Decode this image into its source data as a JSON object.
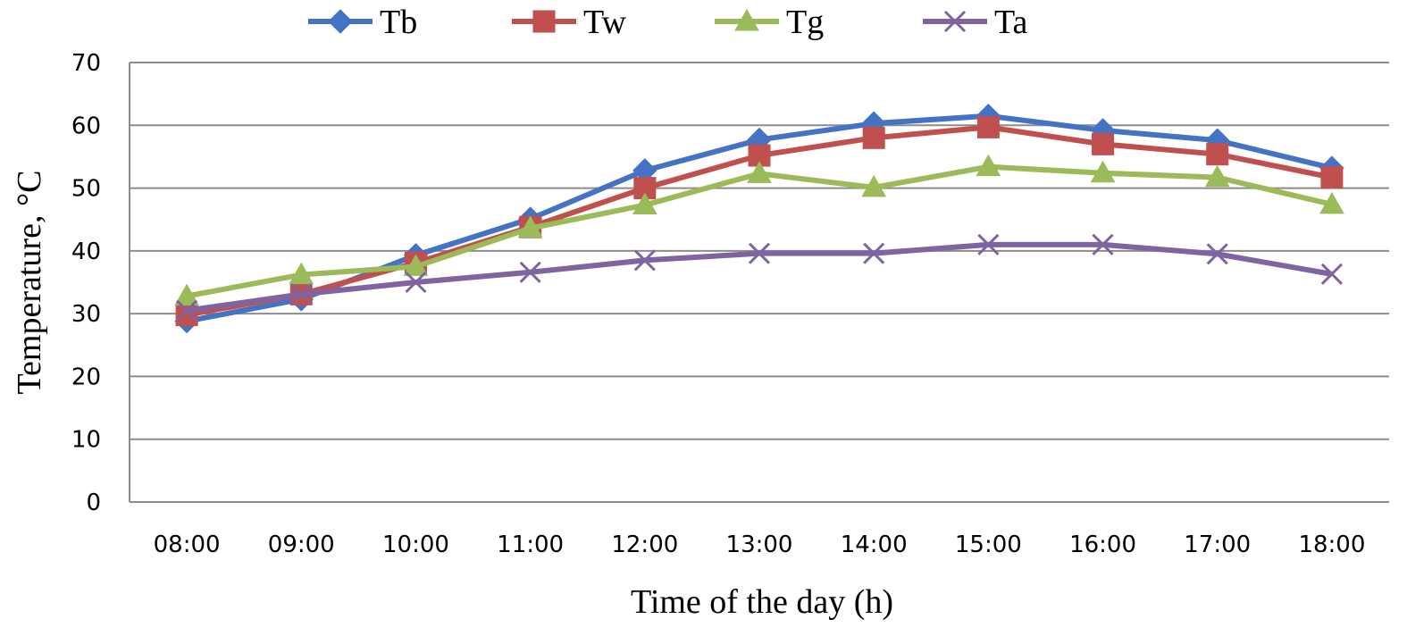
{
  "chart_data": {
    "type": "line",
    "title": "",
    "xlabel": "Time of the day (h)",
    "ylabel": "Temperature, °C",
    "ylim": [
      0,
      70
    ],
    "yticks": [
      "0",
      "10",
      "20",
      "30",
      "40",
      "50",
      "60",
      "70"
    ],
    "grid": "horizontal",
    "legend_position": "top",
    "categories": [
      "08:00",
      "09:00",
      "10:00",
      "11:00",
      "12:00",
      "13:00",
      "14:00",
      "15:00",
      "16:00",
      "17:00",
      "18:00"
    ],
    "series": [
      {
        "name": "Tb",
        "color": "#4472C4",
        "marker": "diamond",
        "values": [
          28.8,
          32.3,
          39.3,
          45.1,
          52.8,
          57.7,
          60.3,
          61.5,
          59.2,
          57.6,
          53.2
        ]
      },
      {
        "name": "Tw",
        "color": "#C0504D",
        "marker": "square",
        "values": [
          29.8,
          33.1,
          38.1,
          43.8,
          50.0,
          55.2,
          58.0,
          59.7,
          57.0,
          55.4,
          51.7
        ]
      },
      {
        "name": "Tg",
        "color": "#9BBB59",
        "marker": "triangle",
        "values": [
          32.8,
          36.2,
          37.5,
          43.6,
          47.3,
          52.3,
          50.1,
          53.4,
          52.4,
          51.7,
          47.4
        ]
      },
      {
        "name": "Ta",
        "color": "#8064A2",
        "marker": "x",
        "values": [
          30.5,
          33.1,
          35.0,
          36.6,
          38.5,
          39.6,
          39.6,
          41.0,
          41.0,
          39.5,
          36.3
        ]
      }
    ]
  }
}
